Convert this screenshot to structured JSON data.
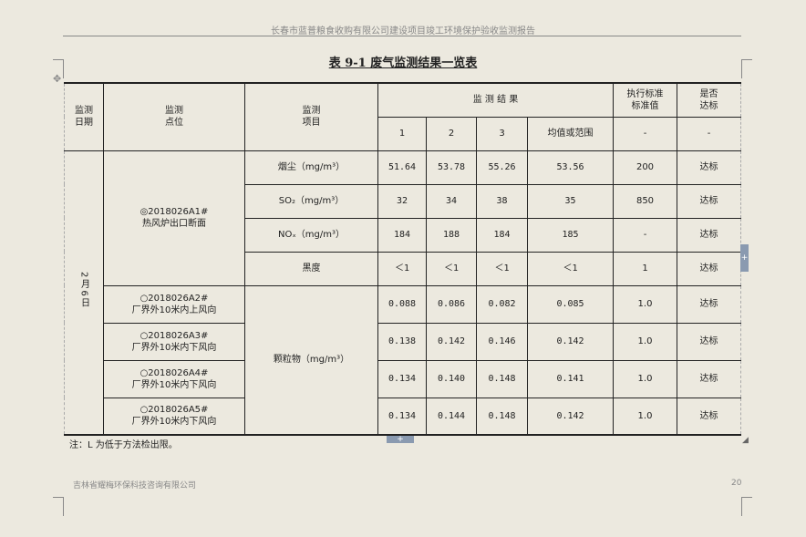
{
  "header": "长春市蓝普粮食收购有限公司建设项目竣工环境保护验收监测报告",
  "title": "表 9-1  废气监测结果一览表",
  "columns": {
    "date": "监测\n日期",
    "point": "监测\n点位",
    "item": "监测\n项目",
    "results": "监 测 结 果",
    "r1": "1",
    "r2": "2",
    "r3": "3",
    "avg": "均值或范围",
    "std": "执行标准\n标准值",
    "ok": "是否\n达标",
    "std_sub": "-",
    "ok_sub": "-"
  },
  "date": "2月6日",
  "point1": {
    "code": "◎2018026A1#",
    "name": "热风炉出口断面"
  },
  "rows1": [
    {
      "item": "烟尘（mg/m³）",
      "v": [
        "51.64",
        "53.78",
        "55.26",
        "53.56"
      ],
      "std": "200",
      "ok": "达标"
    },
    {
      "item": "SO₂（mg/m³）",
      "v": [
        "32",
        "34",
        "38",
        "35"
      ],
      "std": "850",
      "ok": "达标"
    },
    {
      "item": "NOₓ（mg/m³）",
      "v": [
        "184",
        "188",
        "184",
        "185"
      ],
      "std": "-",
      "ok": "达标"
    },
    {
      "item": "黑度",
      "v": [
        "＜1",
        "＜1",
        "＜1",
        "＜1"
      ],
      "std": "1",
      "ok": "达标"
    }
  ],
  "particulate": "颗粒物（mg/m³）",
  "rows2": [
    {
      "code": "○2018026A2#",
      "name": "厂界外10米内上风向",
      "v": [
        "0.088",
        "0.086",
        "0.082",
        "0.085"
      ],
      "std": "1.0",
      "ok": "达标"
    },
    {
      "code": "○2018026A3#",
      "name": "厂界外10米内下风向",
      "v": [
        "0.138",
        "0.142",
        "0.146",
        "0.142"
      ],
      "std": "1.0",
      "ok": "达标"
    },
    {
      "code": "○2018026A4#",
      "name": "厂界外10米内下风向",
      "v": [
        "0.134",
        "0.140",
        "0.148",
        "0.141"
      ],
      "std": "1.0",
      "ok": "达标"
    },
    {
      "code": "○2018026A5#",
      "name": "厂界外10米内下风向",
      "v": [
        "0.134",
        "0.144",
        "0.148",
        "0.142"
      ],
      "std": "1.0",
      "ok": "达标"
    }
  ],
  "note": "注：L 为低于方法检出限。",
  "footer": "吉林省耀梅环保科技咨询有限公司",
  "page": "20"
}
